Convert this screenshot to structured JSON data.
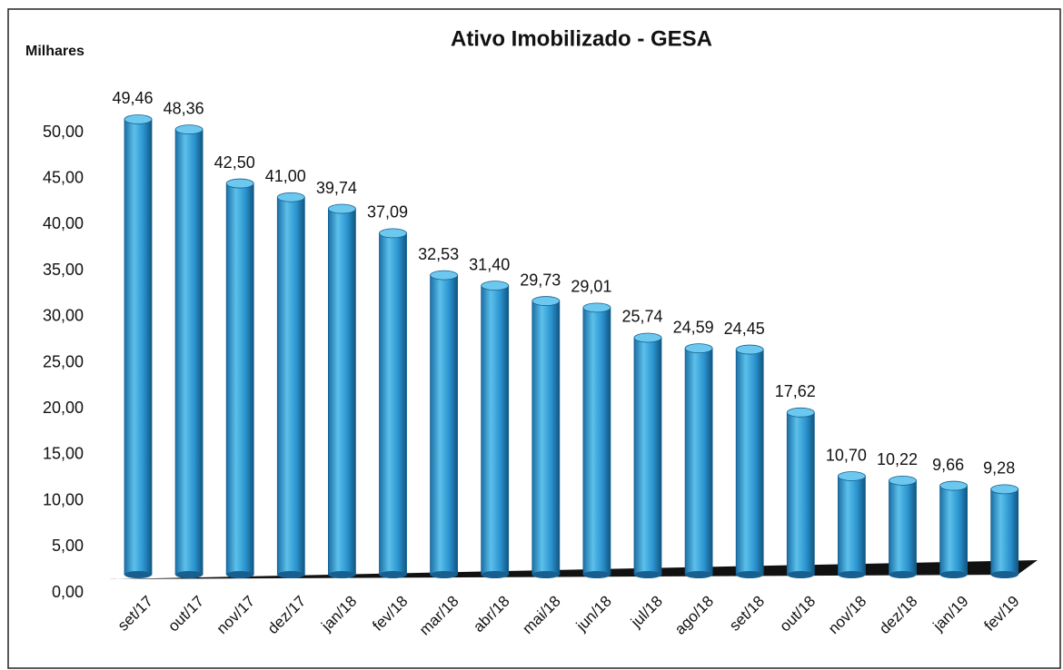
{
  "chart_data": {
    "type": "bar",
    "title": "Ativo Imobilizado - GESA",
    "y_axis_label": "Milhares",
    "categories": [
      "set/17",
      "out/17",
      "nov/17",
      "dez/17",
      "jan/18",
      "fev/18",
      "mar/18",
      "abr/18",
      "mai/18",
      "jun/18",
      "jul/18",
      "ago/18",
      "set/18",
      "out/18",
      "nov/18",
      "dez/18",
      "jan/19",
      "fev/19"
    ],
    "values": [
      49.46,
      48.36,
      42.5,
      41.0,
      39.74,
      37.09,
      32.53,
      31.4,
      29.73,
      29.01,
      25.74,
      24.59,
      24.45,
      17.62,
      10.7,
      10.22,
      9.66,
      9.28
    ],
    "value_labels": [
      "49,46",
      "48,36",
      "42,50",
      "41,00",
      "39,74",
      "37,09",
      "32,53",
      "31,40",
      "29,73",
      "29,01",
      "25,74",
      "24,59",
      "24,45",
      "17,62",
      "10,70",
      "10,22",
      "9,66",
      "9,28"
    ],
    "color": "#2a93cf",
    "ylim": [
      0,
      50
    ],
    "yticks": [
      {
        "value": 0,
        "label": "0,00"
      },
      {
        "value": 5,
        "label": "5,00"
      },
      {
        "value": 10,
        "label": "10,00"
      },
      {
        "value": 15,
        "label": "15,00"
      },
      {
        "value": 20,
        "label": "20,00"
      },
      {
        "value": 25,
        "label": "25,00"
      },
      {
        "value": 30,
        "label": "30,00"
      },
      {
        "value": 35,
        "label": "35,00"
      },
      {
        "value": 40,
        "label": "40,00"
      },
      {
        "value": 45,
        "label": "45,00"
      },
      {
        "value": 50,
        "label": "50,00"
      }
    ],
    "grid": false
  }
}
